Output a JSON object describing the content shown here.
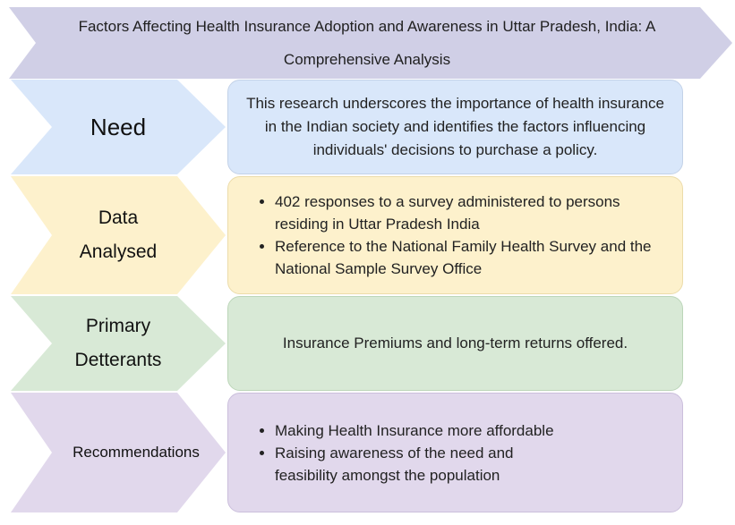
{
  "title": "Factors Affecting Health Insurance Adoption and Awareness in Uttar Pradesh, India: A Comprehensive Analysis",
  "colors": {
    "title_arrow": "#d0cfe6",
    "need": "#d9e7fa",
    "data": "#fdf1cc",
    "deterrents": "#d8e9d6",
    "recommendations": "#e1d8ec",
    "box_border": "#bfc8d8"
  },
  "rows": {
    "need": {
      "label": "Need",
      "text": "This research underscores the importance of health insurance in the Indian society and identifies the factors influencing individuals' decisions to purchase a policy."
    },
    "data": {
      "label_line1": "Data",
      "label_line2": "Analysed",
      "bullets": [
        "402 responses to a survey administered to persons residing in Uttar Pradesh India",
        "Reference to the National Family Health Survey and the National Sample Survey Office"
      ]
    },
    "deterrents": {
      "label_line1": "Primary",
      "label_line2": "Detterants",
      "text": "Insurance Premiums and long-term returns offered."
    },
    "recommendations": {
      "label": "Recommendations",
      "bullets": [
        "Making Health Insurance more affordable",
        "Raising awareness of the need and feasibility amongst the population"
      ]
    }
  }
}
